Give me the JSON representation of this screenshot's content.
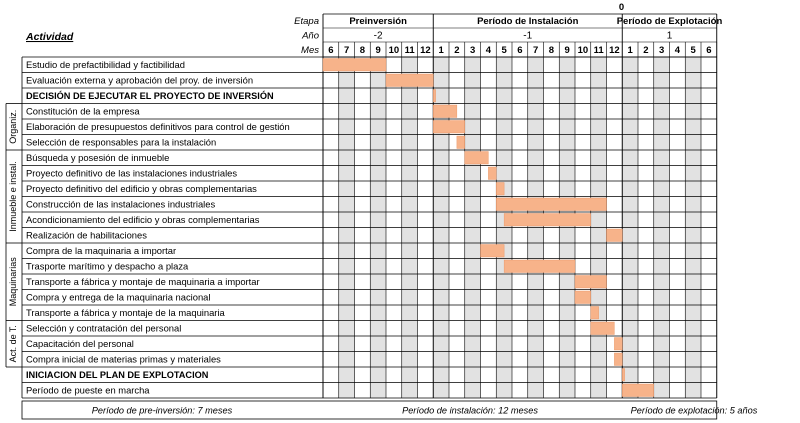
{
  "chart_data": {
    "type": "gantt",
    "corner_label": "0",
    "activity_header": "Actividad",
    "row_labels": {
      "etapa": "Etapa",
      "anio": "Año",
      "mes": "Mes"
    },
    "phases": [
      {
        "name": "Preinversión",
        "year": "-2",
        "months": [
          "6",
          "7",
          "8",
          "9",
          "10",
          "11",
          "12"
        ]
      },
      {
        "name": "Período de Instalación",
        "year": "-1",
        "months": [
          "1",
          "2",
          "3",
          "4",
          "5",
          "6",
          "7",
          "8",
          "9",
          "10",
          "11",
          "12"
        ]
      },
      {
        "name": "Período de Explotación",
        "year": "1",
        "months": [
          "1",
          "2",
          "3",
          "4",
          "5",
          "6"
        ]
      }
    ],
    "groups": [
      {
        "label": "Organiz.",
        "first_row": 3,
        "last_row": 5
      },
      {
        "label": "Inmueble e instal.",
        "first_row": 6,
        "last_row": 11
      },
      {
        "label": "Maquinarias",
        "first_row": 12,
        "last_row": 16
      },
      {
        "label": "Act. de T.",
        "first_row": 17,
        "last_row": 19
      }
    ],
    "tasks": [
      {
        "name": "Estudio de prefactibilidad y factibilidad",
        "bold": false,
        "start": 0,
        "end": 4
      },
      {
        "name": "Evaluación externa y aprobación del proy. de inversión",
        "bold": false,
        "start": 4,
        "end": 7
      },
      {
        "name": "DECISIÓN DE EJECUTAR EL PROYECTO DE INVERSIÓN",
        "bold": true,
        "start": 7,
        "end": 7.15
      },
      {
        "name": "Constitución de la empresa",
        "bold": false,
        "start": 7,
        "end": 8.5
      },
      {
        "name": "Elaboración de presupuestos definitivos para control de gestión",
        "bold": false,
        "start": 7,
        "end": 9
      },
      {
        "name": "Selección de responsables para la instalación",
        "bold": false,
        "start": 8.5,
        "end": 9
      },
      {
        "name": "Búsqueda y posesión de inmueble",
        "bold": false,
        "start": 9,
        "end": 10.5
      },
      {
        "name": "Proyecto definitivo de las instalaciones industriales",
        "bold": false,
        "start": 10.5,
        "end": 11
      },
      {
        "name": "Proyecto definitivo del edificio y obras complementarias",
        "bold": false,
        "start": 11,
        "end": 11.5
      },
      {
        "name": "Construcción de las instalaciones industriales",
        "bold": false,
        "start": 11,
        "end": 18
      },
      {
        "name": "Acondicionamiento del edificio y obras complementarias",
        "bold": false,
        "start": 11.5,
        "end": 17
      },
      {
        "name": "Realización de habilitaciones",
        "bold": false,
        "start": 18,
        "end": 19
      },
      {
        "name": "Compra de la maquinaria a importar",
        "bold": false,
        "start": 10,
        "end": 11.5
      },
      {
        "name": "Trasporte marítimo y despacho a plaza",
        "bold": false,
        "start": 11.5,
        "end": 16
      },
      {
        "name": "Transporte a fábrica y montaje de maquinaria a importar",
        "bold": false,
        "start": 16,
        "end": 18
      },
      {
        "name": "Compra y entrega de la maquinaria nacional",
        "bold": false,
        "start": 16,
        "end": 17
      },
      {
        "name": "Transporte a fábrica y montaje de la maquinaria",
        "bold": false,
        "start": 17,
        "end": 17.5
      },
      {
        "name": "Selección y contratación del personal",
        "bold": false,
        "start": 17,
        "end": 18.5
      },
      {
        "name": "Capacitación del personal",
        "bold": false,
        "start": 18.5,
        "end": 19
      },
      {
        "name": "Compra inicial de materias primas y materiales",
        "bold": false,
        "start": 18.5,
        "end": 19
      },
      {
        "name": "INICIACION DEL PLAN DE EXPLOTACION",
        "bold": true,
        "start": 19,
        "end": 19.15
      },
      {
        "name": "Período de pueste en marcha",
        "bold": false,
        "start": 19,
        "end": 21
      }
    ],
    "footer": [
      "Período de pre-inversión: 7 meses",
      "Período de instalación: 12 meses",
      "Período de explotación: 5 años"
    ],
    "colors": {
      "bar": "#f7b38a",
      "bar_stroke": "#e9925f",
      "shade": "#e2e2e2",
      "grid": "#cfcfcf",
      "border": "#000000"
    }
  }
}
